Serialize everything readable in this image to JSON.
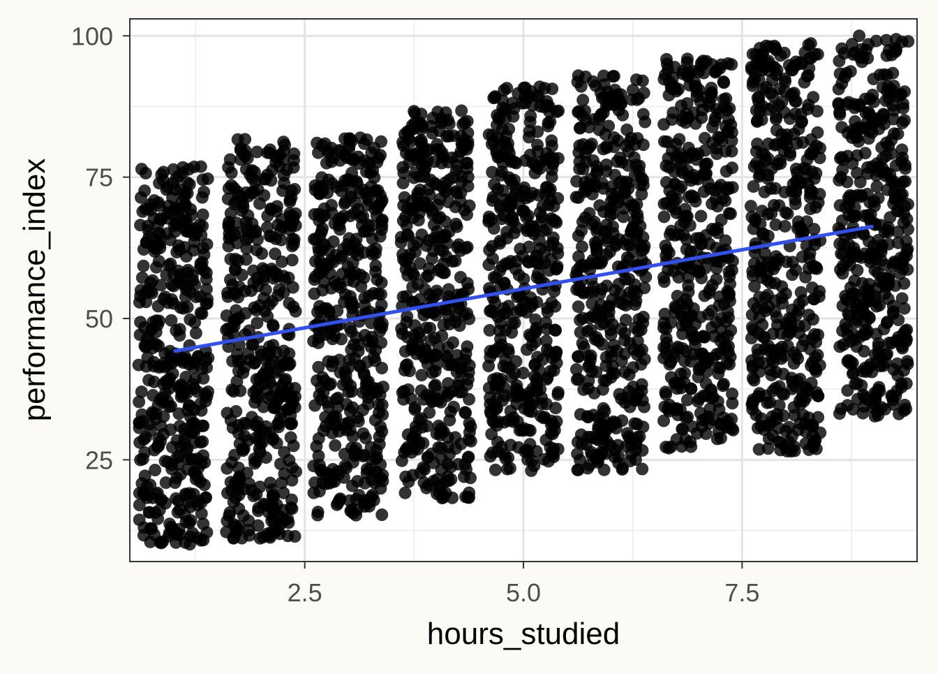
{
  "chart_data": {
    "type": "scatter",
    "xlabel": "hours_studied",
    "ylabel": "performance_index",
    "xlim": [
      0.5,
      9.5
    ],
    "ylim": [
      7,
      103
    ],
    "x_ticks": [
      2.5,
      5.0,
      7.5
    ],
    "x_tick_labels": [
      "2.5",
      "5.0",
      "7.5"
    ],
    "y_ticks": [
      25,
      50,
      75,
      100
    ],
    "y_tick_labels": [
      "25",
      "50",
      "75",
      "100"
    ],
    "x_minor_ticks": [
      1.25,
      3.75,
      6.25,
      8.75
    ],
    "y_minor_ticks": [
      12.5,
      37.5,
      62.5,
      87.5
    ],
    "grid": true,
    "legend": "none",
    "jitter_width": 0.4,
    "point_groups": [
      {
        "x": 1,
        "y_min": 10,
        "y_max": 77
      },
      {
        "x": 2,
        "y_min": 11,
        "y_max": 82
      },
      {
        "x": 3,
        "y_min": 15,
        "y_max": 82
      },
      {
        "x": 4,
        "y_min": 18,
        "y_max": 87
      },
      {
        "x": 5,
        "y_min": 23,
        "y_max": 91
      },
      {
        "x": 6,
        "y_min": 23,
        "y_max": 93
      },
      {
        "x": 7,
        "y_min": 27,
        "y_max": 96
      },
      {
        "x": 8,
        "y_min": 26,
        "y_max": 99
      },
      {
        "x": 9,
        "y_min": 32,
        "y_max": 100
      }
    ],
    "trend_line": {
      "x": [
        1,
        9
      ],
      "y": [
        44.2,
        66.3
      ],
      "color": "#3050f0"
    },
    "point_color": "#000000"
  }
}
